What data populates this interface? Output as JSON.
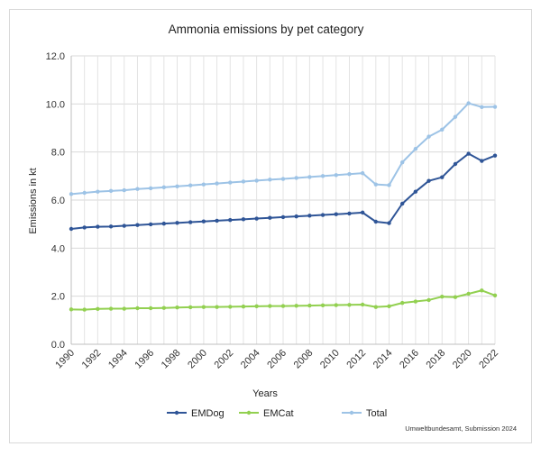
{
  "chart_data": {
    "type": "line",
    "title": "Ammonia emissions by pet category",
    "xlabel": "Years",
    "ylabel": "Emissions in kt",
    "ylim": [
      0,
      12
    ],
    "yticks": [
      "0.0",
      "2.0",
      "4.0",
      "6.0",
      "8.0",
      "10.0",
      "12.0"
    ],
    "xlim": [
      1990,
      2022
    ],
    "xticks": [
      "1990",
      "1992",
      "1994",
      "1996",
      "1998",
      "2000",
      "2002",
      "2004",
      "2006",
      "2008",
      "2010",
      "2012",
      "2014",
      "2016",
      "2018",
      "2020",
      "2022"
    ],
    "grid": "vertical and horizontal gridlines",
    "legend_position": "bottom",
    "source": "Umweltbundesamt, Submission 2024",
    "x": [
      1990,
      1991,
      1992,
      1993,
      1994,
      1995,
      1996,
      1997,
      1998,
      1999,
      2000,
      2001,
      2002,
      2003,
      2004,
      2005,
      2006,
      2007,
      2008,
      2009,
      2010,
      2011,
      2012,
      2013,
      2014,
      2015,
      2016,
      2017,
      2018,
      2019,
      2020,
      2021,
      2022
    ],
    "series": [
      {
        "name": "EMDog",
        "color": "#2f5597",
        "values": [
          4.8,
          4.86,
          4.89,
          4.9,
          4.93,
          4.96,
          4.99,
          5.02,
          5.05,
          5.08,
          5.11,
          5.14,
          5.17,
          5.2,
          5.23,
          5.26,
          5.29,
          5.32,
          5.35,
          5.38,
          5.41,
          5.44,
          5.48,
          5.1,
          5.04,
          5.85,
          6.35,
          6.8,
          6.95,
          7.5,
          7.93,
          7.63,
          7.85
        ]
      },
      {
        "name": "EMCat",
        "color": "#92d050",
        "values": [
          1.45,
          1.44,
          1.47,
          1.48,
          1.48,
          1.5,
          1.5,
          1.51,
          1.53,
          1.54,
          1.55,
          1.55,
          1.56,
          1.57,
          1.58,
          1.59,
          1.59,
          1.6,
          1.61,
          1.62,
          1.63,
          1.64,
          1.65,
          1.55,
          1.58,
          1.72,
          1.78,
          1.84,
          1.98,
          1.96,
          2.1,
          2.24,
          2.03
        ]
      },
      {
        "name": "Total",
        "color": "#9dc3e6",
        "values": [
          6.25,
          6.3,
          6.35,
          6.38,
          6.41,
          6.46,
          6.49,
          6.53,
          6.57,
          6.61,
          6.65,
          6.69,
          6.73,
          6.77,
          6.81,
          6.85,
          6.88,
          6.92,
          6.96,
          7.0,
          7.04,
          7.08,
          7.12,
          6.65,
          6.62,
          7.57,
          8.13,
          8.64,
          8.93,
          9.46,
          10.03,
          9.87,
          9.88
        ]
      }
    ]
  }
}
